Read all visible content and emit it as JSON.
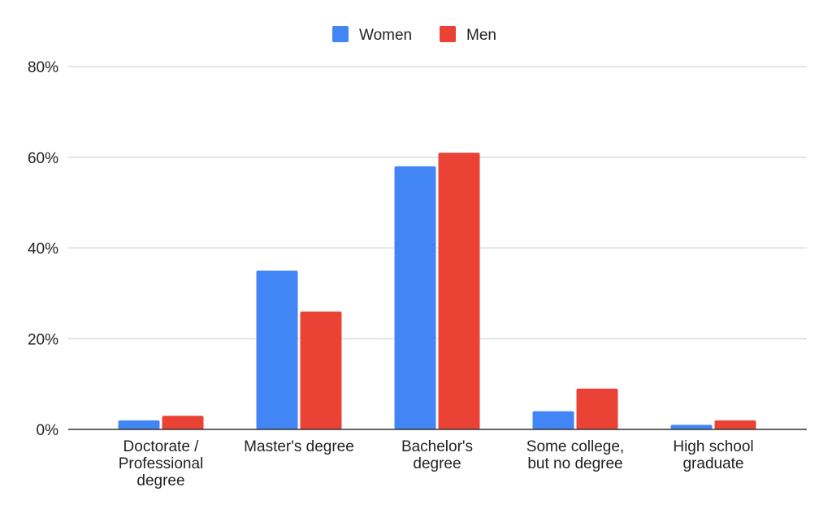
{
  "chart_data": {
    "type": "bar",
    "categories": [
      [
        "Doctorate /",
        "Professional",
        "degree"
      ],
      [
        "Master's degree"
      ],
      [
        "Bachelor's",
        "degree"
      ],
      [
        "Some college,",
        "but no degree"
      ],
      [
        "High school",
        "graduate"
      ]
    ],
    "series": [
      {
        "name": "Women",
        "color": "#4285F4",
        "values": [
          2,
          35,
          58,
          4,
          1
        ]
      },
      {
        "name": "Men",
        "color": "#EA4335",
        "values": [
          3,
          26,
          61,
          9,
          2
        ]
      }
    ],
    "y_ticks": [
      {
        "value": 0,
        "label": "0%"
      },
      {
        "value": 20,
        "label": "20%"
      },
      {
        "value": 40,
        "label": "40%"
      },
      {
        "value": 60,
        "label": "60%"
      },
      {
        "value": 80,
        "label": "80%"
      }
    ],
    "ylim": [
      0,
      80
    ],
    "grid": true,
    "legend_position": "top-center",
    "title": "",
    "xlabel": "",
    "ylabel": ""
  }
}
